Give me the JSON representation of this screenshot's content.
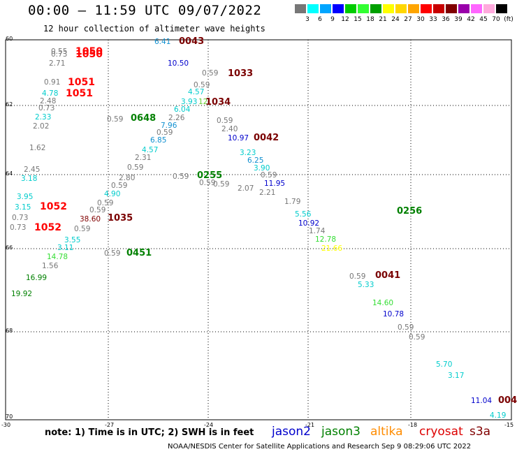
{
  "title": "00:00 – 11:59 UTC 09/07/2022",
  "subtitle": "12 hour collection of altimeter wave heights",
  "colorbar": {
    "colors": [
      "#777777",
      "#00ffff",
      "#00a5ff",
      "#0000ff",
      "#00cc00",
      "#33ff33",
      "#00a000",
      "#ffff00",
      "#ffd700",
      "#ffa500",
      "#ff0000",
      "#c80000",
      "#800000",
      "#9900aa",
      "#ff66ff",
      "#ffaadd",
      "#000000"
    ],
    "labels": [
      "3",
      "6",
      "9",
      "12",
      "15",
      "18",
      "21",
      "24",
      "27",
      "30",
      "33",
      "36",
      "39",
      "42",
      "45",
      "70",
      "(ft)"
    ]
  },
  "axes": {
    "lat_labels": [
      "60",
      "62",
      "64",
      "66",
      "68",
      "70"
    ],
    "lon_labels": [
      "-30",
      "-27",
      "-24",
      "-21",
      "-18",
      "-15"
    ]
  },
  "wave_heights": [
    {
      "text": "6.41",
      "color": "#1090d0"
    },
    {
      "text": "0.55",
      "color": "#777777"
    },
    {
      "text": "0.73",
      "color": "#777777"
    },
    {
      "text": "2.71",
      "color": "#777777"
    },
    {
      "text": "10.50",
      "color": "#0000cc"
    },
    {
      "text": "0.59",
      "color": "#777777"
    },
    {
      "text": "0.59",
      "color": "#777777"
    },
    {
      "text": "0.91",
      "color": "#777777"
    },
    {
      "text": "4.78",
      "color": "#00cccc"
    },
    {
      "text": "4.57",
      "color": "#00cccc"
    },
    {
      "text": "2.48",
      "color": "#777777"
    },
    {
      "text": "0.73",
      "color": "#777777"
    },
    {
      "text": "3.93",
      "color": "#00cccc"
    },
    {
      "text": "12",
      "color": "#66cc33"
    },
    {
      "text": "6.04",
      "color": "#00cccc"
    },
    {
      "text": "2.33",
      "color": "#00cccc"
    },
    {
      "text": "2.02",
      "color": "#777777"
    },
    {
      "text": "0.59",
      "color": "#777777"
    },
    {
      "text": "2.26",
      "color": "#777777"
    },
    {
      "text": "7.96",
      "color": "#1090d0"
    },
    {
      "text": "0.59",
      "color": "#777777"
    },
    {
      "text": "2.40",
      "color": "#777777"
    },
    {
      "text": "0.59",
      "color": "#777777"
    },
    {
      "text": "6.85",
      "color": "#1090d0"
    },
    {
      "text": "10.97",
      "color": "#0000cc"
    },
    {
      "text": "1.62",
      "color": "#777777"
    },
    {
      "text": "4.57",
      "color": "#00cccc"
    },
    {
      "text": "3.23",
      "color": "#00cccc"
    },
    {
      "text": "2.31",
      "color": "#777777"
    },
    {
      "text": "6.25",
      "color": "#1090d0"
    },
    {
      "text": "0.59",
      "color": "#777777"
    },
    {
      "text": "3.90",
      "color": "#00cccc"
    },
    {
      "text": "2.45",
      "color": "#777777"
    },
    {
      "text": "3.18",
      "color": "#00cccc"
    },
    {
      "text": "2.80",
      "color": "#777777"
    },
    {
      "text": "0.59",
      "color": "#777777"
    },
    {
      "text": "0.59",
      "color": "#777777"
    },
    {
      "text": "0.59",
      "color": "#777777"
    },
    {
      "text": "0.59",
      "color": "#777777"
    },
    {
      "text": "11.95",
      "color": "#0000cc"
    },
    {
      "text": "0.59",
      "color": "#777777"
    },
    {
      "text": "2.07",
      "color": "#777777"
    },
    {
      "text": "2.21",
      "color": "#777777"
    },
    {
      "text": "4.90",
      "color": "#00cccc"
    },
    {
      "text": "3.95",
      "color": "#00cccc"
    },
    {
      "text": "1.79",
      "color": "#777777"
    },
    {
      "text": "3.15",
      "color": "#00cccc"
    },
    {
      "text": "0.59",
      "color": "#777777"
    },
    {
      "text": "0.59",
      "color": "#777777"
    },
    {
      "text": "0.73",
      "color": "#777777"
    },
    {
      "text": "5.56",
      "color": "#00cccc"
    },
    {
      "text": "38.60",
      "color": "#800000"
    },
    {
      "text": "0.73",
      "color": "#777777"
    },
    {
      "text": "0.59",
      "color": "#777777"
    },
    {
      "text": "10.92",
      "color": "#0000cc"
    },
    {
      "text": "1.74",
      "color": "#777777"
    },
    {
      "text": "3.55",
      "color": "#00cccc"
    },
    {
      "text": "12.78",
      "color": "#33dd33"
    },
    {
      "text": "3.11",
      "color": "#00cccc"
    },
    {
      "text": "21.66",
      "color": "#ffff00"
    },
    {
      "text": "0.59",
      "color": "#777777"
    },
    {
      "text": "14.78",
      "color": "#33dd33"
    },
    {
      "text": "1.56",
      "color": "#777777"
    },
    {
      "text": "0.59",
      "color": "#777777"
    },
    {
      "text": "16.99",
      "color": "#008000"
    },
    {
      "text": "5.33",
      "color": "#00cccc"
    },
    {
      "text": "19.92",
      "color": "#008000"
    },
    {
      "text": "14.60",
      "color": "#33dd33"
    },
    {
      "text": "10.78",
      "color": "#0000cc"
    },
    {
      "text": "0.59",
      "color": "#777777"
    },
    {
      "text": "0.59",
      "color": "#777777"
    },
    {
      "text": "5.70",
      "color": "#00cccc"
    },
    {
      "text": "3.17",
      "color": "#00cccc"
    },
    {
      "text": "11.04",
      "color": "#0000cc"
    },
    {
      "text": "4.19",
      "color": "#00cccc"
    }
  ],
  "pass_times": [
    {
      "text": "0043",
      "color": "maroon"
    },
    {
      "text": "1050",
      "color": "red"
    },
    {
      "text": "1050",
      "color": "red"
    },
    {
      "text": "1033",
      "color": "maroon"
    },
    {
      "text": "1051",
      "color": "red"
    },
    {
      "text": "1051",
      "color": "red"
    },
    {
      "text": "1034",
      "color": "maroon"
    },
    {
      "text": "0648",
      "color": "green"
    },
    {
      "text": "0042",
      "color": "maroon"
    },
    {
      "text": "0255",
      "color": "green"
    },
    {
      "text": "0256",
      "color": "green"
    },
    {
      "text": "1052",
      "color": "red"
    },
    {
      "text": "1052",
      "color": "red"
    },
    {
      "text": "1035",
      "color": "maroon"
    },
    {
      "text": "0451",
      "color": "green"
    },
    {
      "text": "0041",
      "color": "maroon"
    },
    {
      "text": "004",
      "color": "maroon"
    }
  ],
  "note": "note:  1) Time is in UTC;  2) SWH is in feet",
  "satellites": [
    {
      "name": "jason2",
      "color": "#0000cc"
    },
    {
      "name": "jason3",
      "color": "#008000"
    },
    {
      "name": "altika",
      "color": "#ff8c00"
    },
    {
      "name": "cryosat",
      "color": "#dd0000"
    },
    {
      "name": "s3a",
      "color": "#800000"
    }
  ],
  "footer": "NOAA/NESDIS Center for Satellite Applications and Research     Sep  9 08:29:06 UTC 2022"
}
